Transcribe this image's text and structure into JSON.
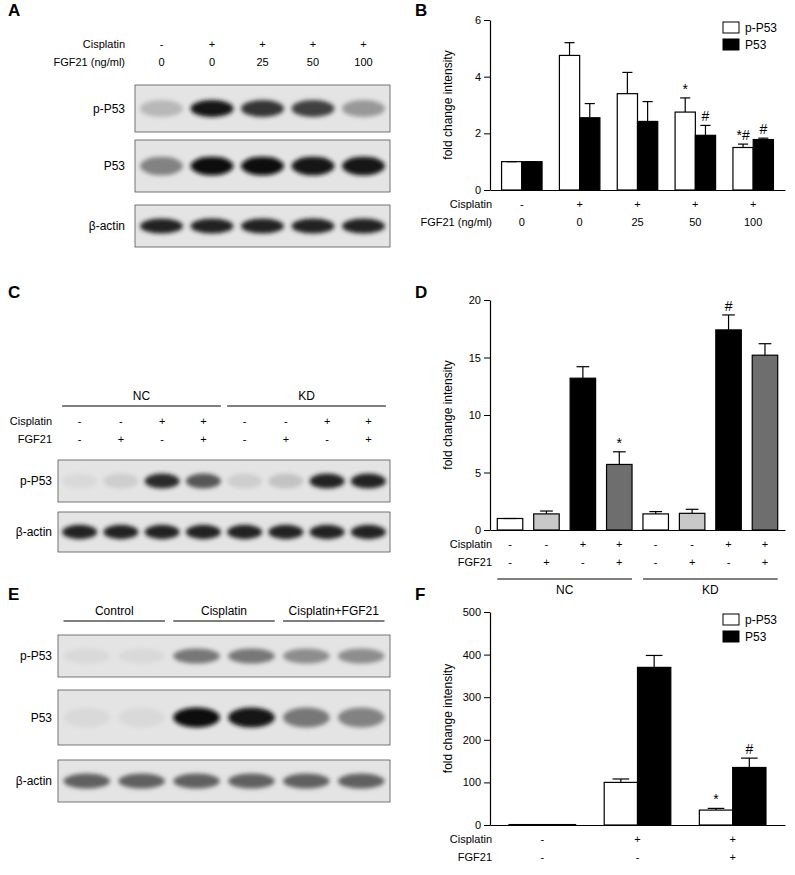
{
  "chart_data": [
    {
      "type": "bar",
      "title": "B",
      "y_label": "fold change intensity",
      "categories": [
        null,
        null,
        null,
        null,
        null
      ],
      "tick_labels": "y",
      "ylim": [
        0,
        6
      ],
      "yticks": [
        0,
        2,
        4,
        6
      ],
      "legend": "upper right",
      "series": [
        {
          "name": "p-P53",
          "color": "#ffffff",
          "values": [
            1,
            4.75,
            3.4,
            2.75,
            1.5
          ],
          "errors": [
            0,
            0.45,
            0.75,
            0.5,
            0.12
          ]
        },
        {
          "name": "P53",
          "color": "#000000",
          "values": [
            1,
            2.55,
            2.42,
            1.93,
            1.78
          ],
          "errors": [
            0,
            0.5,
            0.7,
            0.35,
            0.05
          ]
        }
      ],
      "conditions": [
        {
          "label": "Cisplatin",
          "values": [
            "-",
            "+",
            "+",
            "+",
            "+"
          ]
        },
        {
          "label": "FGF21 (ng/ml)",
          "values": [
            "0",
            "0",
            "25",
            "50",
            "100"
          ]
        }
      ],
      "annotations": [
        {
          "text": "*",
          "series": 0,
          "index": 3
        },
        {
          "text": "*#",
          "series": 0,
          "index": 4
        },
        {
          "text": "#",
          "series": 1,
          "index": 3
        },
        {
          "text": "#",
          "series": 1,
          "index": 4
        }
      ]
    },
    {
      "type": "bar",
      "title": "D",
      "y_label": "fold change intensity",
      "categories": [
        null,
        null,
        null,
        null,
        null,
        null,
        null,
        null
      ],
      "tick_labels": "y",
      "ylim": [
        0,
        20
      ],
      "yticks": [
        0,
        5,
        10,
        15,
        20
      ],
      "values": [
        1,
        1.4,
        13.2,
        5.7,
        1.4,
        1.45,
        17.4,
        15.2
      ],
      "errors": [
        0,
        0.25,
        1.0,
        1.1,
        0.2,
        0.35,
        1.3,
        1.0
      ],
      "colors": [
        "#ffffff",
        "#c8c8c8",
        "#000000",
        "#6e6e6e",
        "#ffffff",
        "#c8c8c8",
        "#000000",
        "#6e6e6e"
      ],
      "conditions": [
        {
          "label": "Cisplatin",
          "values": [
            "-",
            "-",
            "+",
            "+",
            "-",
            "-",
            "+",
            "+"
          ]
        },
        {
          "label": "FGF21",
          "values": [
            "-",
            "+",
            "-",
            "+",
            "-",
            "+",
            "-",
            "+"
          ]
        }
      ],
      "groups": [
        {
          "label": "NC",
          "span": [
            0,
            3
          ]
        },
        {
          "label": "KD",
          "span": [
            4,
            7
          ]
        }
      ],
      "annotations": [
        {
          "text": "*",
          "index": 3
        },
        {
          "text": "#",
          "index": 6
        }
      ]
    },
    {
      "type": "bar",
      "title": "F",
      "y_label": "fold change intensity",
      "categories": [
        null,
        null,
        null
      ],
      "tick_labels": "y",
      "ylim": [
        0,
        500
      ],
      "yticks": [
        0,
        100,
        200,
        300,
        400,
        500
      ],
      "legend": "upper right",
      "series": [
        {
          "name": "p-P53",
          "color": "#ffffff",
          "values": [
            1,
            100,
            35
          ],
          "errors": [
            0,
            8,
            4
          ]
        },
        {
          "name": "P53",
          "color": "#000000",
          "values": [
            1,
            370,
            135
          ],
          "errors": [
            0,
            28,
            22
          ]
        }
      ],
      "conditions": [
        {
          "label": "Cisplatin",
          "values": [
            "-",
            "+",
            "+"
          ]
        },
        {
          "label": "FGF21",
          "values": [
            "-",
            "-",
            "+"
          ]
        }
      ],
      "annotations": [
        {
          "text": "*",
          "series": 0,
          "index": 2
        },
        {
          "text": "#",
          "series": 1,
          "index": 2
        }
      ]
    }
  ],
  "blots": [
    {
      "title": "A",
      "conditions": [
        {
          "label": "Cisplatin",
          "values": [
            "-",
            "+",
            "+",
            "+",
            "+"
          ]
        },
        {
          "label": "FGF21 (ng/ml)",
          "values": [
            "0",
            "0",
            "25",
            "50",
            "100"
          ]
        }
      ],
      "rows": [
        {
          "label": "p-P53",
          "intensity": [
            0.2,
            0.95,
            0.8,
            0.75,
            0.35
          ]
        },
        {
          "label": "P53",
          "intensity": [
            0.45,
            1,
            1,
            0.95,
            0.95
          ]
        },
        {
          "label": "β-actin",
          "intensity": [
            0.9,
            0.9,
            0.9,
            0.9,
            0.9
          ]
        }
      ]
    },
    {
      "title": "C",
      "groups": [
        {
          "label": "NC",
          "span": [
            0,
            3
          ]
        },
        {
          "label": "KD",
          "span": [
            4,
            7
          ]
        }
      ],
      "conditions": [
        {
          "label": "Cisplatin",
          "values": [
            "-",
            "-",
            "+",
            "+",
            "-",
            "-",
            "+",
            "+"
          ]
        },
        {
          "label": "FGF21",
          "values": [
            "-",
            "+",
            "-",
            "+",
            "-",
            "+",
            "-",
            "+"
          ]
        }
      ],
      "rows": [
        {
          "label": "p-P53",
          "intensity": [
            0.05,
            0.1,
            0.85,
            0.65,
            0.1,
            0.15,
            0.9,
            0.9
          ]
        },
        {
          "label": "β-actin",
          "intensity": [
            0.9,
            0.9,
            0.9,
            0.9,
            0.9,
            0.9,
            0.9,
            0.9
          ]
        }
      ]
    },
    {
      "title": "E",
      "groups": [
        {
          "label": "Control",
          "span": [
            0,
            1
          ]
        },
        {
          "label": "Cisplatin",
          "span": [
            2,
            3
          ]
        },
        {
          "label": "Cisplatin+FGF21",
          "span": [
            4,
            5
          ]
        }
      ],
      "rows": [
        {
          "label": "p-P53",
          "intensity": [
            0.05,
            0.05,
            0.5,
            0.5,
            0.4,
            0.4
          ]
        },
        {
          "label": "P53",
          "intensity": [
            0.05,
            0.05,
            1,
            0.95,
            0.5,
            0.45
          ]
        },
        {
          "label": "β-actin",
          "intensity": [
            0.6,
            0.6,
            0.6,
            0.6,
            0.6,
            0.6
          ]
        }
      ]
    }
  ]
}
